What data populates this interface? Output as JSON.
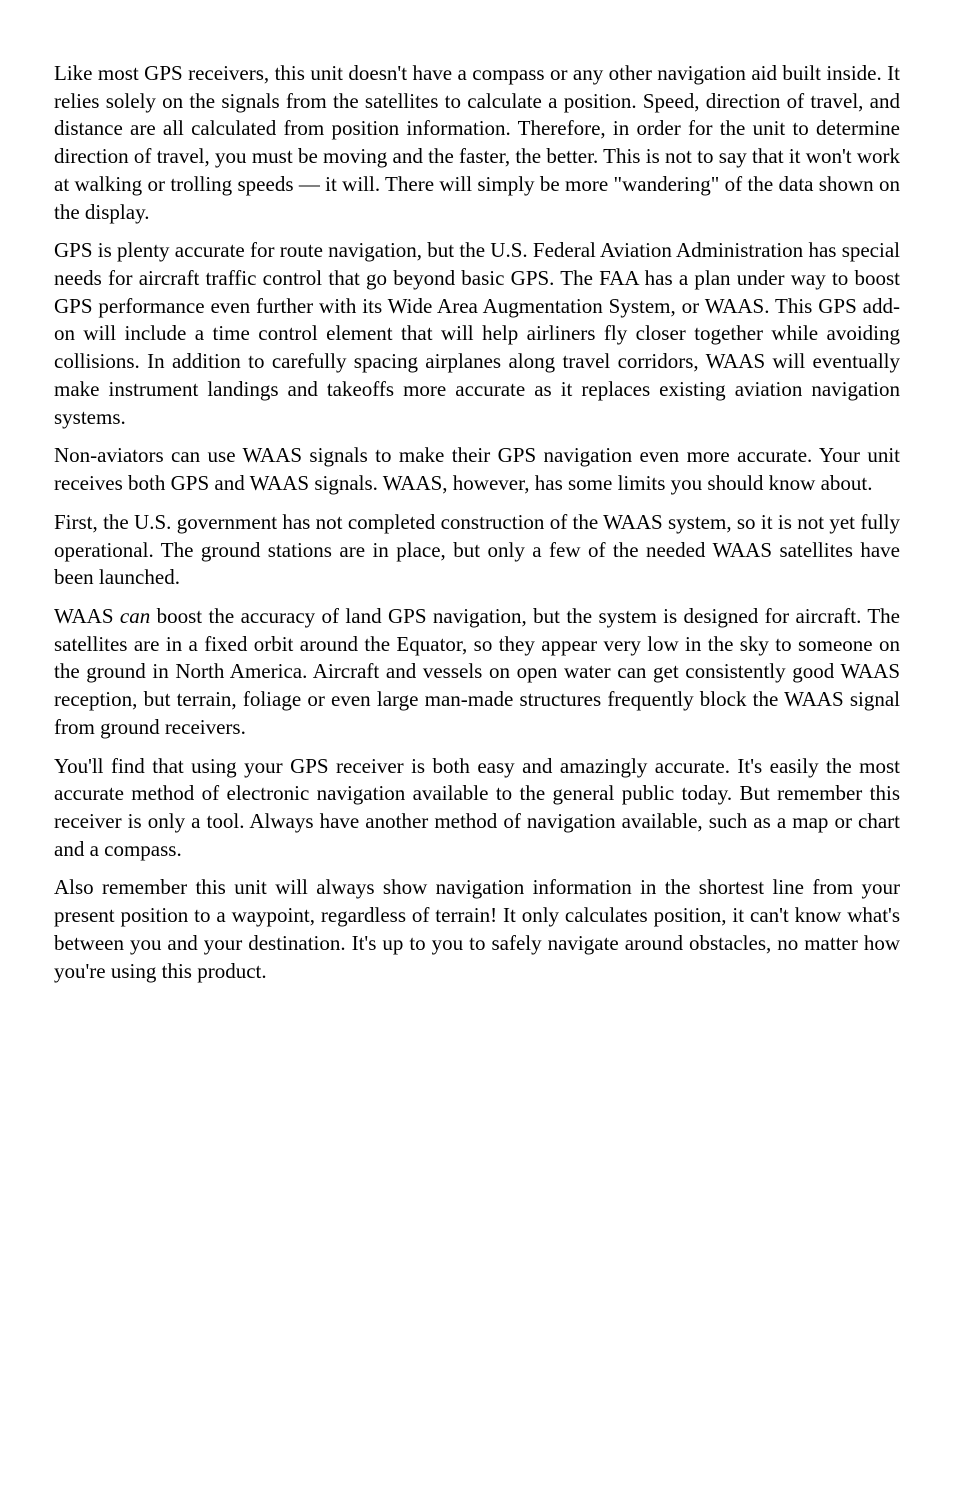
{
  "paragraphs": [
    "Like most GPS receivers, this unit doesn't have a compass or any other navigation aid built inside. It relies solely on the signals from the satellites to calculate a position. Speed, direction of travel, and distance are all calculated from position information. Therefore, in order for the unit to determine direction of travel, you must be moving and the faster, the better. This is not to say that it won't work at walking or trolling speeds — it will. There will simply be more \"wandering\" of the data shown on the display.",
    "GPS is plenty accurate for route navigation, but the U.S. Federal Aviation Administration has special needs for aircraft traffic control that go beyond basic GPS. The FAA has a plan under way to boost GPS performance even further with its Wide Area Augmentation System, or WAAS. This GPS add-on will include a time control element that will help airliners fly closer together while avoiding collisions. In addition to carefully spacing airplanes along travel corridors, WAAS will eventually make instrument landings and takeoffs more accurate as it replaces existing aviation navigation systems.",
    "Non-aviators can use WAAS signals to make their GPS navigation even more accurate. Your unit receives both GPS and WAAS signals. WAAS, however, has some limits you should know about.",
    "First, the U.S. government has not completed construction of the WAAS system, so it is not yet fully operational. The ground stations are in place, but only a few of the needed WAAS satellites have been launched.",
    "WAAS <em>can</em> boost the accuracy of land GPS navigation, but the system is designed for aircraft. The satellites are in a fixed orbit around the Equator, so they appear very low in the sky to someone on the ground in North America. Aircraft and vessels on open water can get consistently good WAAS reception, but terrain, foliage or even large man-made structures frequently block the WAAS signal from ground receivers.",
    "You'll find that using your GPS receiver is both easy and amazingly accurate. It's easily the most accurate method of electronic navigation available to the general public today. But remember this receiver is only a tool. Always have another method of navigation available, such as a map or chart and a compass.",
    "Also remember this unit will always show navigation information in the shortest line from your present position to a waypoint, regardless of terrain! It only calculates position, it can't know what's between you and your destination. It's up to you to safely navigate around obstacles, no matter how you're using this product."
  ]
}
